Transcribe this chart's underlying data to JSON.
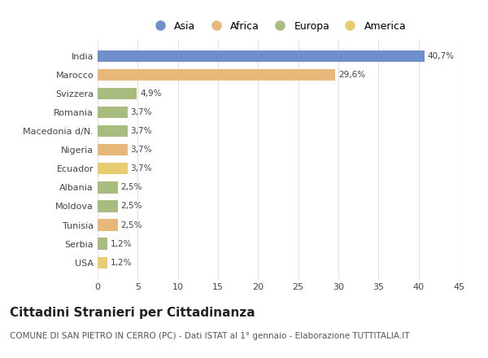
{
  "countries": [
    "India",
    "Marocco",
    "Svizzera",
    "Romania",
    "Macedonia d/N.",
    "Nigeria",
    "Ecuador",
    "Albania",
    "Moldova",
    "Tunisia",
    "Serbia",
    "USA"
  ],
  "values": [
    40.7,
    29.6,
    4.9,
    3.7,
    3.7,
    3.7,
    3.7,
    2.5,
    2.5,
    2.5,
    1.2,
    1.2
  ],
  "labels": [
    "40,7%",
    "29,6%",
    "4,9%",
    "3,7%",
    "3,7%",
    "3,7%",
    "3,7%",
    "2,5%",
    "2,5%",
    "2,5%",
    "1,2%",
    "1,2%"
  ],
  "regions": [
    "Asia",
    "Africa",
    "Europa",
    "Europa",
    "Europa",
    "Africa",
    "America",
    "Europa",
    "Europa",
    "Africa",
    "Europa",
    "America"
  ],
  "region_colors": {
    "Asia": "#6e8fc9",
    "Africa": "#e8b87a",
    "Europa": "#a8bc80",
    "America": "#e8cc70"
  },
  "legend_order": [
    "Asia",
    "Africa",
    "Europa",
    "America"
  ],
  "title": "Cittadini Stranieri per Cittadinanza",
  "subtitle": "COMUNE DI SAN PIETRO IN CERRO (PC) - Dati ISTAT al 1° gennaio - Elaborazione TUTTITALIA.IT",
  "xlim": [
    0,
    45
  ],
  "xticks": [
    0,
    5,
    10,
    15,
    20,
    25,
    30,
    35,
    40,
    45
  ],
  "bg_color": "#ffffff",
  "grid_color": "#e0e0e0",
  "bar_height": 0.62,
  "title_fontsize": 11,
  "subtitle_fontsize": 7.5,
  "label_fontsize": 7.5,
  "tick_fontsize": 8,
  "legend_fontsize": 9
}
